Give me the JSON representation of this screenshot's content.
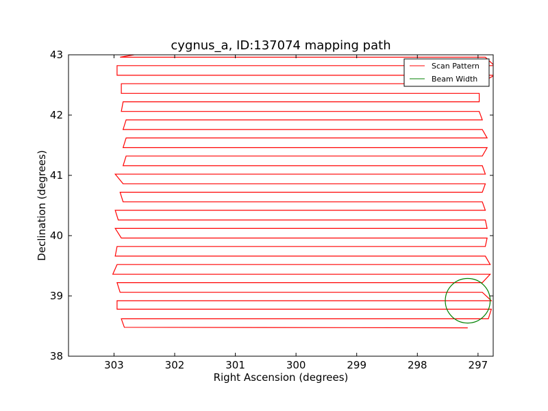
{
  "chart_data": {
    "type": "line",
    "title": "cygnus_a, ID:137074 mapping path",
    "xlabel": "Right Ascension (degrees)",
    "ylabel": "Declination (degrees)",
    "xlim": [
      303.75,
      296.75
    ],
    "ylim": [
      38,
      43
    ],
    "x_inverted": true,
    "x_ticks": [
      303,
      302,
      301,
      300,
      299,
      298,
      297
    ],
    "y_ticks": [
      38,
      39,
      40,
      41,
      42,
      43
    ],
    "grid": false,
    "legend_placement": "top-right",
    "series": [
      {
        "name": "Scan Pattern",
        "color": "#ff0000",
        "style": "raster-scan",
        "dec_rows": [
          38.48,
          38.62,
          38.78,
          38.92,
          39.06,
          39.22,
          39.36,
          39.52,
          39.66,
          39.82,
          39.96,
          40.12,
          40.26,
          40.42,
          40.56,
          40.72,
          40.86,
          41.02,
          41.16,
          41.32,
          41.46,
          41.62,
          41.76,
          41.92,
          42.06,
          42.22,
          42.36,
          42.52,
          42.66,
          42.82,
          42.96
        ],
        "west_turns": [
          302.88,
          302.88,
          302.95,
          302.95,
          302.9,
          302.95,
          303.02,
          302.95,
          302.98,
          302.95,
          302.88,
          302.98,
          302.93,
          302.98,
          302.85,
          302.9,
          302.85,
          302.98,
          302.85,
          302.8,
          302.85,
          302.8,
          302.85,
          302.8,
          302.88,
          302.85
        ],
        "east_turns": [
          296.83,
          296.78,
          296.93,
          296.8,
          296.88,
          296.85,
          296.88,
          296.93,
          296.88,
          296.93,
          296.85,
          296.93,
          296.98,
          296.98,
          296.73,
          296.88,
          296.85,
          296.85,
          296.88,
          296.88,
          296.88
        ],
        "start": [
          297.17,
          38.47
        ],
        "end": [
          302.67,
          43.0
        ]
      },
      {
        "name": "Beam Width",
        "color": "#008000",
        "type": "circle",
        "center": [
          297.17,
          38.92
        ],
        "radius_deg": 0.37
      }
    ]
  }
}
